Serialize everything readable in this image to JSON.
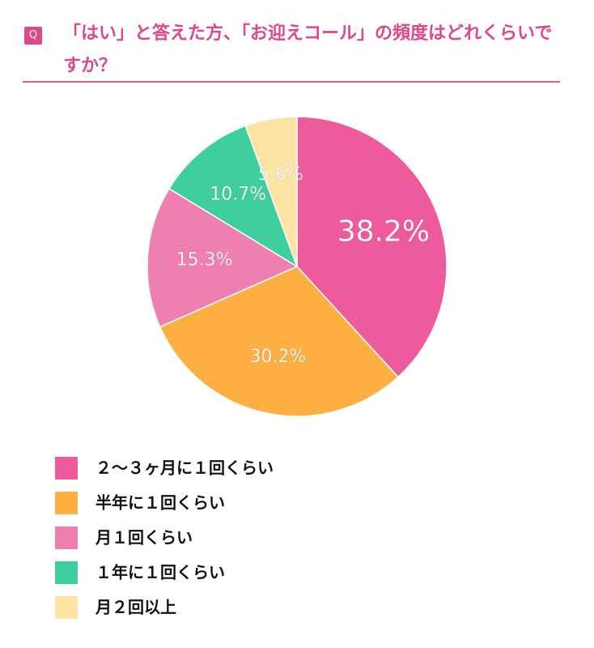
{
  "chart_data": {
    "type": "pie",
    "badge": "Q",
    "title": "「はい」と答えた方、「お迎えコール」の頻度はどれくらいですか？",
    "categories": [
      "２〜３ヶ月に１回くらい",
      "半年に１回くらい",
      "月１回くらい",
      "１年に１回くらい",
      "月２回以上"
    ],
    "values": [
      38.2,
      30.2,
      15.3,
      10.7,
      5.6
    ],
    "value_labels": [
      "38.2%",
      "30.2%",
      "15.3%",
      "10.7%",
      "5.6%"
    ],
    "colors": [
      "#ef5a9c",
      "#fdb041",
      "#f07fb1",
      "#3ecf9c",
      "#fde3a4"
    ]
  }
}
